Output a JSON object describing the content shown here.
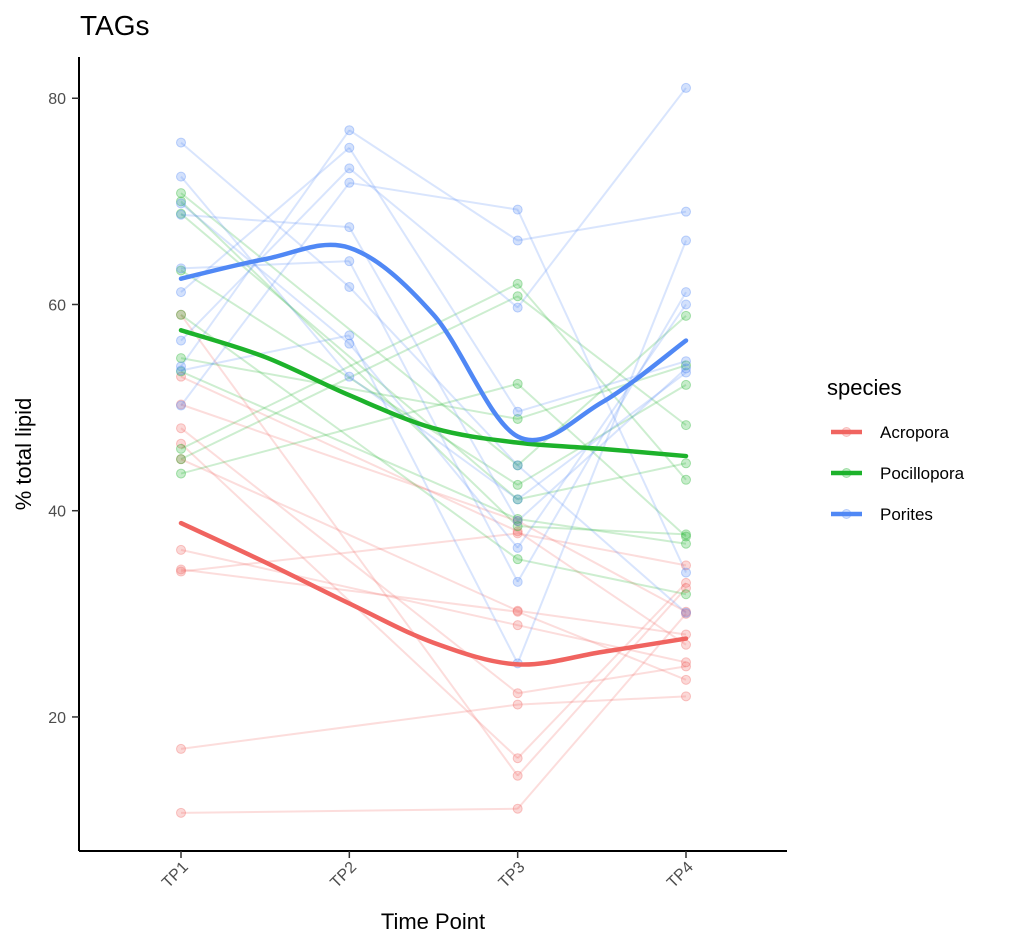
{
  "chart_data": {
    "type": "line",
    "title": "TAGs",
    "xlabel": "Time Point",
    "ylabel": "% total lipid",
    "categories": [
      "TP1",
      "TP2",
      "TP3",
      "TP4"
    ],
    "yticks": [
      20,
      40,
      60,
      80
    ],
    "ylim": [
      7,
      84
    ],
    "grid": false,
    "legend": {
      "title": "species",
      "placement": "right",
      "entries": [
        "Acropora",
        "Pocillopora",
        "Porites"
      ]
    },
    "colors": {
      "Acropora": "#F06460",
      "Pocillopora": "#1DB22B",
      "Porites": "#5088F5"
    },
    "series": [
      {
        "name": "Acropora",
        "trend": [
          [
            1,
            38.8
          ],
          [
            1.5,
            35.0
          ],
          [
            2,
            31.0
          ],
          [
            2.5,
            27.2
          ],
          [
            3,
            25.1
          ],
          [
            3.5,
            26.3
          ],
          [
            4,
            27.6
          ]
        ],
        "individuals": [
          [
            1,
            53.0,
            3,
            38.0
          ],
          [
            1,
            50.3,
            3,
            39.0
          ],
          [
            1,
            48.0,
            3,
            22.3
          ],
          [
            1,
            46.5,
            3,
            16.0
          ],
          [
            1,
            45.0,
            3,
            30.3
          ],
          [
            1,
            36.2,
            3,
            28.9
          ],
          [
            1,
            34.3,
            3,
            30.2
          ],
          [
            1,
            34.1,
            3,
            37.8
          ],
          [
            1,
            59.0,
            3,
            14.3
          ],
          [
            1,
            16.9,
            3,
            21.2
          ],
          [
            1,
            10.7,
            3,
            11.1
          ],
          [
            3,
            38.0,
            4,
            27.0
          ],
          [
            3,
            39.0,
            4,
            30.2
          ],
          [
            3,
            22.3,
            4,
            24.9
          ],
          [
            3,
            16.0,
            4,
            33.0
          ],
          [
            3,
            30.3,
            4,
            28.0
          ],
          [
            3,
            28.9,
            4,
            25.3
          ],
          [
            3,
            30.2,
            4,
            23.6
          ],
          [
            3,
            37.8,
            4,
            34.7
          ],
          [
            3,
            14.3,
            4,
            32.5
          ],
          [
            3,
            21.2,
            4,
            22.0
          ],
          [
            3,
            11.1,
            4,
            30.0
          ]
        ]
      },
      {
        "name": "Pocillopora",
        "trend": [
          [
            1,
            57.5
          ],
          [
            1.5,
            54.9
          ],
          [
            2,
            51.2
          ],
          [
            2.5,
            48.0
          ],
          [
            3,
            46.6
          ],
          [
            3.5,
            46.0
          ],
          [
            4,
            45.3
          ]
        ],
        "individuals": [
          [
            1,
            70.8,
            3,
            44.4
          ],
          [
            1,
            70.0,
            3,
            38.5
          ],
          [
            1,
            68.8,
            3,
            41.1
          ],
          [
            1,
            63.3,
            3,
            42.5
          ],
          [
            1,
            59.0,
            3,
            35.3
          ],
          [
            1,
            54.8,
            3,
            48.9
          ],
          [
            1,
            53.5,
            3,
            39.2
          ],
          [
            1,
            46.0,
            3,
            62.0
          ],
          [
            1,
            45.0,
            3,
            60.8
          ],
          [
            1,
            43.6,
            3,
            52.3
          ],
          [
            3,
            44.4,
            4,
            58.9
          ],
          [
            3,
            38.5,
            4,
            37.7
          ],
          [
            3,
            41.1,
            4,
            44.6
          ],
          [
            3,
            42.5,
            4,
            52.2
          ],
          [
            3,
            35.3,
            4,
            31.9
          ],
          [
            3,
            48.9,
            4,
            54.1
          ],
          [
            3,
            39.2,
            4,
            36.8
          ],
          [
            3,
            62.0,
            4,
            43.0
          ],
          [
            3,
            60.8,
            4,
            48.3
          ],
          [
            3,
            52.3,
            4,
            37.5
          ]
        ]
      },
      {
        "name": "Porites",
        "trend": [
          [
            1,
            62.5
          ],
          [
            1.5,
            64.4
          ],
          [
            2,
            65.5
          ],
          [
            2.5,
            59.0
          ],
          [
            3,
            47.2
          ],
          [
            3.5,
            50.5
          ],
          [
            4,
            56.5
          ]
        ],
        "individuals": [
          [
            1,
            75.7,
            2,
            61.7
          ],
          [
            1,
            72.4,
            2,
            53.0
          ],
          [
            1,
            69.8,
            2,
            56.2
          ],
          [
            1,
            63.5,
            2,
            64.2
          ],
          [
            1,
            61.2,
            2,
            75.2
          ],
          [
            1,
            56.5,
            2,
            73.2
          ],
          [
            1,
            54.0,
            2,
            76.9
          ],
          [
            1,
            53.6,
            2,
            57.0
          ],
          [
            1,
            50.2,
            2,
            71.8
          ],
          [
            1,
            68.7,
            2,
            67.5
          ],
          [
            2,
            61.7,
            3,
            44.4
          ],
          [
            2,
            53.0,
            3,
            41.1
          ],
          [
            2,
            56.2,
            3,
            36.4
          ],
          [
            2,
            64.2,
            3,
            33.1
          ],
          [
            2,
            75.2,
            3,
            49.6
          ],
          [
            2,
            73.2,
            3,
            59.7
          ],
          [
            2,
            76.9,
            3,
            66.2
          ],
          [
            2,
            57.0,
            3,
            25.2
          ],
          [
            2,
            71.8,
            3,
            69.2
          ],
          [
            2,
            67.5,
            3,
            39.0
          ],
          [
            3,
            44.4,
            4,
            30.1
          ],
          [
            3,
            41.1,
            4,
            53.4
          ],
          [
            3,
            36.4,
            4,
            60.0
          ],
          [
            3,
            33.1,
            4,
            61.2
          ],
          [
            3,
            49.6,
            4,
            54.5
          ],
          [
            3,
            59.7,
            4,
            81.0
          ],
          [
            3,
            66.2,
            4,
            69.0
          ],
          [
            3,
            25.2,
            4,
            66.2
          ],
          [
            3,
            69.2,
            4,
            34.0
          ],
          [
            3,
            39.0,
            4,
            53.8
          ]
        ]
      }
    ]
  }
}
